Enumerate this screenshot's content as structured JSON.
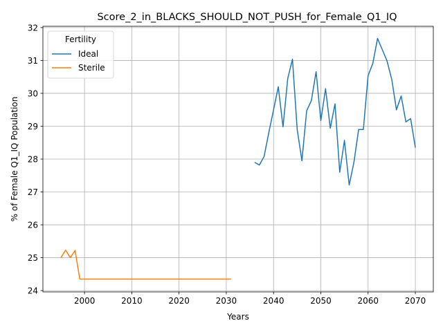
{
  "chart_data": {
    "type": "line",
    "title": "Score_2_in_BLACKS_SHOULD_NOT_PUSH_for_Female_Q1_IQ",
    "xlabel": "Years",
    "ylabel": "% of Female Q1_IQ Population",
    "xlim": [
      1991.2,
      2073.8
    ],
    "ylim": [
      23.96,
      32.04
    ],
    "xticks": [
      2000,
      2010,
      2020,
      2030,
      2040,
      2050,
      2060,
      2070
    ],
    "yticks": [
      24,
      25,
      26,
      27,
      28,
      29,
      30,
      31,
      32
    ],
    "grid": true,
    "legend": {
      "title": "Fertility",
      "placement": "upper-left"
    },
    "series": [
      {
        "name": "Ideal",
        "color": "#1f77b4",
        "x": [
          2036,
          2037,
          2038,
          2039,
          2040,
          2041,
          2042,
          2043,
          2044,
          2045,
          2046,
          2047,
          2048,
          2049,
          2050,
          2051,
          2052,
          2053,
          2054,
          2055,
          2056,
          2057,
          2058,
          2059,
          2060,
          2061,
          2062,
          2063,
          2064,
          2065,
          2066,
          2067,
          2068,
          2069,
          2070
        ],
        "y": [
          27.9,
          27.82,
          28.08,
          28.81,
          29.5,
          30.2,
          28.98,
          30.45,
          31.04,
          28.9,
          27.95,
          29.47,
          29.78,
          30.66,
          29.17,
          30.14,
          28.94,
          29.68,
          27.6,
          28.57,
          27.21,
          27.9,
          28.9,
          28.9,
          30.54,
          30.91,
          31.67,
          31.33,
          30.99,
          30.43,
          29.5,
          29.92,
          29.13,
          29.23,
          28.35
        ]
      },
      {
        "name": "Sterile",
        "color": "#ff7f0e",
        "x": [
          1995,
          1996,
          1997,
          1998,
          1999,
          2000,
          2001,
          2002,
          2003,
          2004,
          2005,
          2006,
          2007,
          2008,
          2009,
          2010,
          2011,
          2012,
          2013,
          2014,
          2015,
          2016,
          2017,
          2018,
          2019,
          2020,
          2021,
          2022,
          2023,
          2024,
          2025,
          2026,
          2027,
          2028,
          2029,
          2030,
          2031
        ],
        "y": [
          25.0,
          25.23,
          25.0,
          25.22,
          24.35,
          24.35,
          24.35,
          24.35,
          24.35,
          24.35,
          24.35,
          24.35,
          24.35,
          24.35,
          24.35,
          24.35,
          24.35,
          24.35,
          24.35,
          24.35,
          24.35,
          24.35,
          24.35,
          24.35,
          24.35,
          24.35,
          24.35,
          24.35,
          24.35,
          24.35,
          24.35,
          24.35,
          24.35,
          24.35,
          24.35,
          24.35,
          24.35
        ]
      }
    ]
  }
}
